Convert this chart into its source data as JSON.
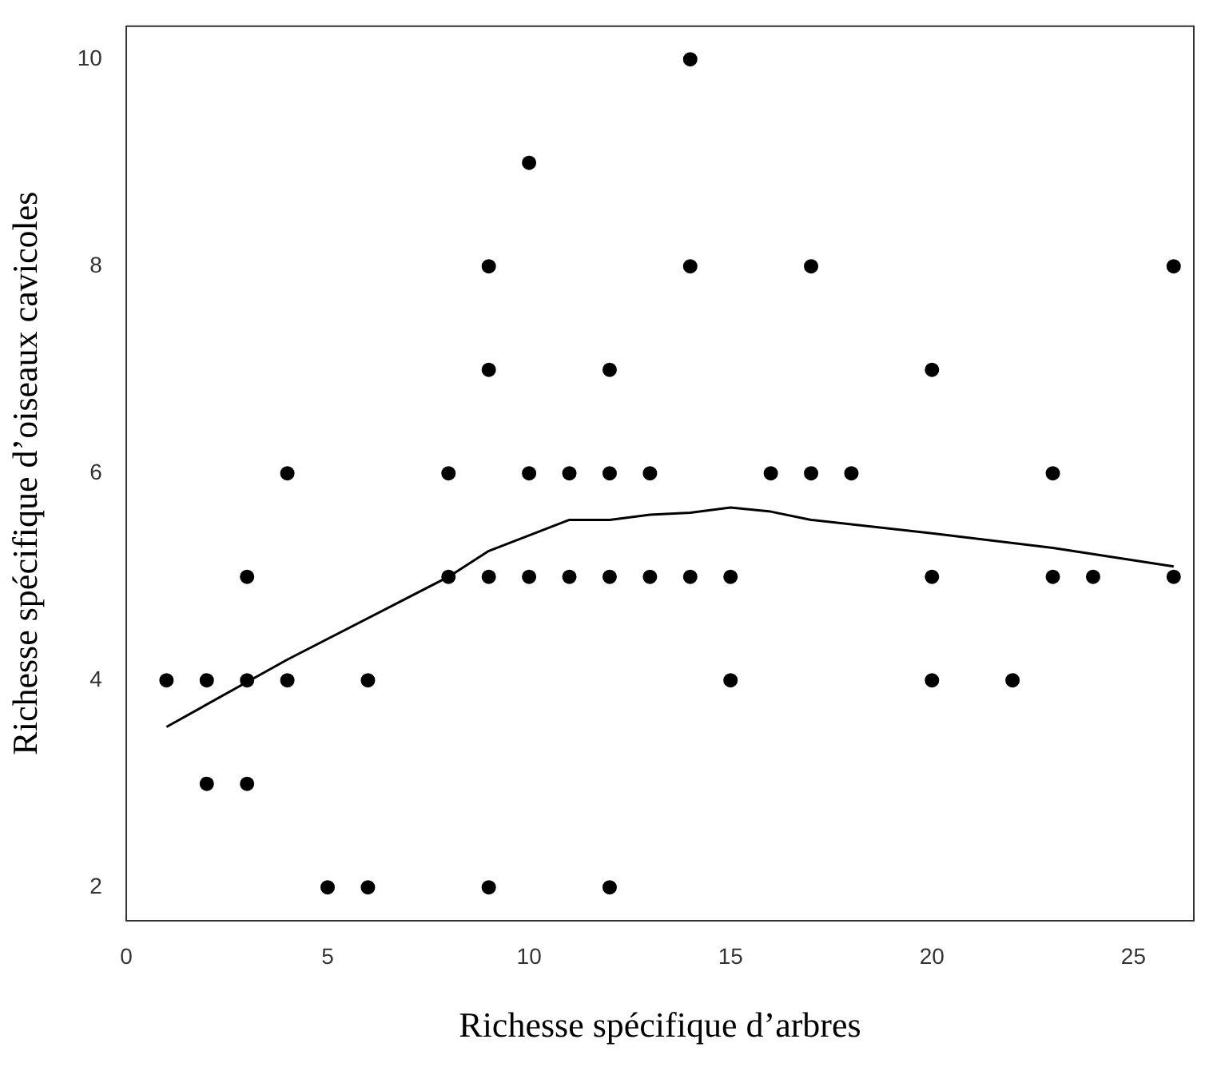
{
  "chart_data": {
    "type": "scatter",
    "xlabel": "Richesse spécifique d’arbres",
    "ylabel": "Richesse spécifique d’oiseaux cavicoles",
    "xlim": [
      0,
      26.5
    ],
    "xticks": [
      0,
      5,
      10,
      15,
      20,
      25
    ],
    "ylim": [
      1.68,
      10.32
    ],
    "yticks": [
      2,
      4,
      6,
      8,
      10
    ],
    "grid": false,
    "legend": false,
    "marker": "circle",
    "series": [
      {
        "color": "#000000",
        "x": [
          1,
          2,
          2,
          3,
          3,
          3,
          4,
          4,
          5,
          6,
          6,
          8,
          8,
          9,
          9,
          9,
          9,
          10,
          10,
          10,
          11,
          11,
          12,
          12,
          12,
          12,
          13,
          13,
          14,
          14,
          14,
          15,
          15,
          16,
          17,
          17,
          18,
          20,
          20,
          20,
          22,
          23,
          23,
          24,
          26,
          26
        ],
        "values": [
          4,
          4,
          3,
          5,
          4,
          3,
          6,
          4,
          2,
          4,
          2,
          6,
          5,
          8,
          7,
          5,
          2,
          9,
          6,
          5,
          6,
          5,
          7,
          6,
          5,
          2,
          6,
          5,
          10,
          8,
          5,
          5,
          4,
          6,
          8,
          6,
          6,
          7,
          5,
          4,
          4,
          6,
          5,
          5,
          8,
          5
        ]
      },
      {
        "type": "line",
        "color": "#000000",
        "marker": "none",
        "line_style": "solid",
        "x": [
          1,
          4,
          8,
          9,
          11,
          12,
          13,
          14,
          15,
          16,
          17,
          20,
          23,
          26
        ],
        "values": [
          3.55,
          4.2,
          5.0,
          5.25,
          5.55,
          5.55,
          5.6,
          5.62,
          5.67,
          5.63,
          5.55,
          5.42,
          5.28,
          5.1
        ]
      }
    ]
  }
}
